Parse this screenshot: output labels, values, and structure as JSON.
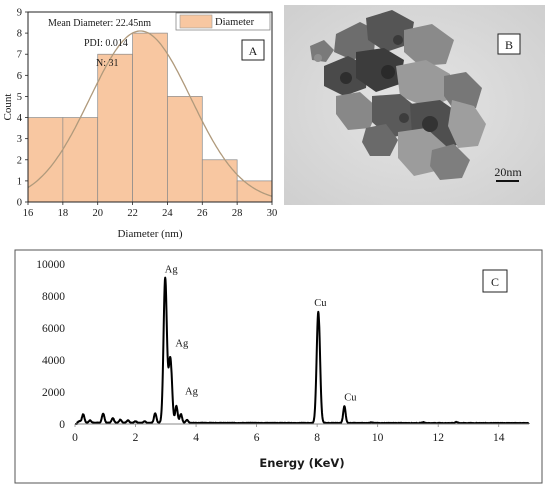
{
  "colors": {
    "bar_fill": "#f8c7a1",
    "bar_stroke": "#8a8a8a",
    "fit_curve": "#b09a7c",
    "spectrum": "#000000",
    "tem_background": "#d9d9d9"
  },
  "chart_data": [
    {
      "id": "A",
      "type": "bar",
      "panel_label": "A",
      "xlabel": "Diameter (nm)",
      "ylabel": "Count",
      "xlim": [
        16,
        30
      ],
      "ylim": [
        0,
        9
      ],
      "xticks": [
        "16",
        "18",
        "20",
        "22",
        "24",
        "26",
        "28",
        "30"
      ],
      "yticks": [
        "0",
        "1",
        "2",
        "3",
        "4",
        "5",
        "6",
        "7",
        "8",
        "9"
      ],
      "bin_edges": [
        16,
        18,
        20,
        22,
        24,
        26,
        28,
        30
      ],
      "values": [
        4,
        4,
        7,
        8,
        5,
        2,
        1
      ],
      "series": [
        {
          "name": "Diameter",
          "values": [
            4,
            4,
            7,
            8,
            5,
            2,
            1
          ]
        }
      ],
      "fit_curve": {
        "type": "normal",
        "mean": 22.45,
        "sd": 2.9,
        "peak": 8.1
      },
      "legend": {
        "label": "Diameter",
        "placement": "top-right"
      },
      "annotations": [
        "Mean Diameter: 22.45nm",
        "PDI: 0.014",
        "N: 31"
      ],
      "grid": false
    },
    {
      "id": "C",
      "type": "line",
      "panel_label": "C",
      "xlabel": "Energy (KeV)",
      "ylabel": "",
      "xlim": [
        0,
        15
      ],
      "ylim": [
        0,
        10000
      ],
      "xticks": [
        "0",
        "2",
        "4",
        "6",
        "8",
        "10",
        "12",
        "14"
      ],
      "yticks": [
        "0",
        "2000",
        "4000",
        "6000",
        "8000",
        "10000"
      ],
      "grid": false,
      "peaks": [
        {
          "x": 0.15,
          "y": 150
        },
        {
          "x": 0.27,
          "y": 580
        },
        {
          "x": 0.5,
          "y": 200
        },
        {
          "x": 0.93,
          "y": 620
        },
        {
          "x": 1.25,
          "y": 350
        },
        {
          "x": 1.5,
          "y": 250
        },
        {
          "x": 1.75,
          "y": 200
        },
        {
          "x": 2.0,
          "y": 150
        },
        {
          "x": 2.3,
          "y": 150
        },
        {
          "x": 2.65,
          "y": 650
        },
        {
          "x": 2.98,
          "y": 9100
        },
        {
          "x": 3.15,
          "y": 4100
        },
        {
          "x": 3.35,
          "y": 1100
        },
        {
          "x": 3.5,
          "y": 600
        },
        {
          "x": 3.7,
          "y": 250
        },
        {
          "x": 8.04,
          "y": 7000
        },
        {
          "x": 8.9,
          "y": 1100
        },
        {
          "x": 9.8,
          "y": 100
        },
        {
          "x": 11.5,
          "y": 100
        },
        {
          "x": 12.6,
          "y": 120
        }
      ],
      "peak_labels": [
        {
          "text": "Ag",
          "x": 2.98,
          "y": 9100
        },
        {
          "text": "Ag",
          "x": 3.2,
          "y": 4100
        },
        {
          "text": "Ag",
          "x": 3.45,
          "y": 1100
        },
        {
          "text": "Cu",
          "x": 8.04,
          "y": 7000
        },
        {
          "text": "Cu",
          "x": 8.9,
          "y": 1100
        }
      ]
    }
  ],
  "tem": {
    "panel_label": "B",
    "scale_bar_label": "20nm"
  }
}
